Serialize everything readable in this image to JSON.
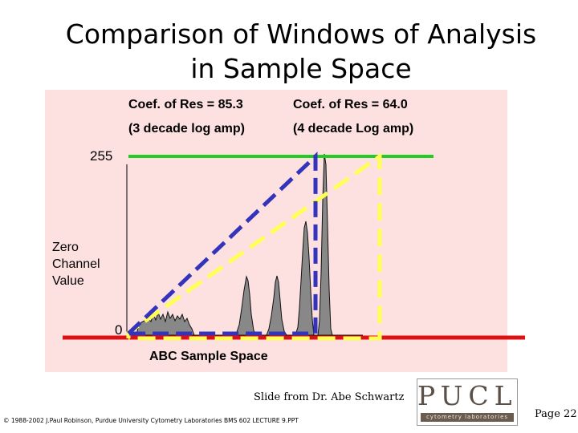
{
  "title": {
    "line1": "Comparison of Windows of Analysis",
    "line2": "in Sample Space"
  },
  "annotations": {
    "coef_left": "Coef. of Res = 85.3",
    "amp_left": "(3 decade log amp)",
    "coef_right": "Coef. of Res = 64.0",
    "amp_right": "(4 decade Log amp)",
    "level_255": "255",
    "level_0": "0",
    "zero_line1": "Zero",
    "zero_line2": "Channel",
    "zero_line3": "Value",
    "sample_space": "ABC Sample Space"
  },
  "colors": {
    "panel": "#fde0e0",
    "green_line": "#22cc22",
    "red_line": "#dd1111",
    "blue_dashed": "#3333bb",
    "yellow_dashed": "#ffff55",
    "histogram_fill": "#888888"
  },
  "footer": {
    "credit": "Slide from Dr. Abe Schwartz",
    "copyright": "© 1988-2002 J.Paul Robinson, Purdue University Cytometry Laboratories BMS 602 LECTURE 9.PPT",
    "page": "Page 22",
    "logo_text": "PUCL",
    "logo_sub": "cytometry laboratories"
  }
}
